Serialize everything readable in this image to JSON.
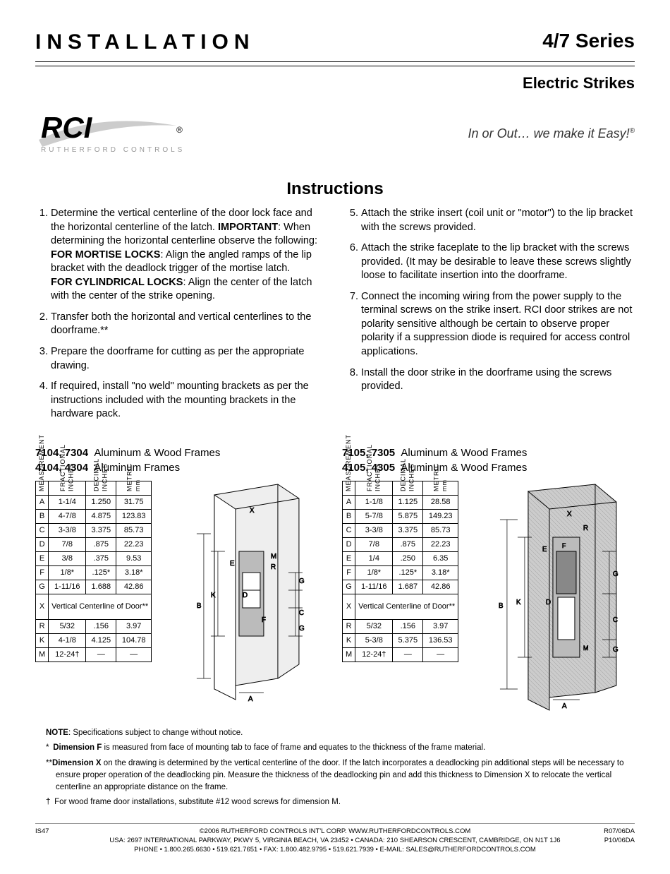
{
  "header": {
    "title": "INSTALLATION",
    "series": "4/7 Series",
    "subtitle": "Electric Strikes"
  },
  "logo": {
    "main": "RCI",
    "reg": "®",
    "sub": "RUTHERFORD CONTROLS",
    "tagline": "In or Out… we make it Easy!",
    "tagline_reg": "®"
  },
  "instructions": {
    "title": "Instructions",
    "left": [
      "Determine the vertical centerline of the door lock face and the horizontal centerline of the latch. <span class=\"bold\">IMPORTANT</span>: When determining the horizontal centerline observe the following:<br><span class=\"bold\">FOR MORTISE LOCKS</span>: Align the angled ramps of the lip bracket with the deadlock trigger of the mortise latch.<br><span class=\"bold\">FOR CYLINDRICAL LOCKS</span>: Align the center of the latch with the center of the strike opening.",
      "Transfer both the horizontal and vertical centerlines to the doorframe.**",
      "Prepare the doorframe for cutting as per the appropriate drawing.",
      "If required, install \"no weld\" mounting brackets as per the instructions included with the mounting brackets in the hardware pack."
    ],
    "right": [
      "Attach the strike insert (coil unit or \"motor\") to the lip bracket with the screws provided.",
      "Attach the strike faceplate to the lip bracket with the screws provided. (It may be desirable to leave these screws slightly loose to facilitate insertion into the doorframe.",
      "Connect the incoming wiring from the power supply to the terminal screws on the strike insert. RCI door strikes are not polarity sensitive although be certain to observe proper polarity if a suppression diode is required for access control applications.",
      "Install the door strike in the doorframe using the screws provided."
    ]
  },
  "blocks": [
    {
      "lines": [
        {
          "models": "7104, 7304",
          "desc": "Aluminum & Wood Frames"
        },
        {
          "models": "4104, 4304",
          "desc": "Aluminum Frames"
        }
      ],
      "headers": [
        "MEASUREMENT",
        "FRACTIONAL\nINCHES",
        "DECIMAL\nINCHES",
        "METRIC\nmm"
      ],
      "rows": [
        [
          "A",
          "1-1/4",
          "1.250",
          "31.75"
        ],
        [
          "B",
          "4-7/8",
          "4.875",
          "123.83"
        ],
        [
          "C",
          "3-3/8",
          "3.375",
          "85.73"
        ],
        [
          "D",
          "7/8",
          ".875",
          "22.23"
        ],
        [
          "E",
          "3/8",
          ".375",
          "9.53"
        ],
        [
          "F",
          "1/8*",
          ".125*",
          "3.18*"
        ],
        [
          "G",
          "1-11/16",
          "1.688",
          "42.86"
        ]
      ],
      "xlabel": "Vertical Centerline of Door**",
      "rows2": [
        [
          "R",
          "5/32",
          ".156",
          "3.97"
        ],
        [
          "K",
          "4-1/8",
          "4.125",
          "104.78"
        ],
        [
          "M",
          "12-24†",
          "—",
          "—"
        ]
      ]
    },
    {
      "lines": [
        {
          "models": "7105, 7305",
          "desc": "Aluminum & Wood Frames"
        },
        {
          "models": "4105, 4305",
          "desc": "Aluminum & Wood Frames"
        }
      ],
      "headers": [
        "MEASUREMENT",
        "FRACTIONAL\nINCHES",
        "DECIMAL\nINCHES",
        "METRIC\nmm"
      ],
      "rows": [
        [
          "A",
          "1-1/8",
          "1.125",
          "28.58"
        ],
        [
          "B",
          "5-7/8",
          "5.875",
          "149.23"
        ],
        [
          "C",
          "3-3/8",
          "3.375",
          "85.73"
        ],
        [
          "D",
          "7/8",
          ".875",
          "22.23"
        ],
        [
          "E",
          "1/4",
          ".250",
          "6.35"
        ],
        [
          "F",
          "1/8*",
          ".125*",
          "3.18*"
        ],
        [
          "G",
          "1-11/16",
          "1.687",
          "42.86"
        ]
      ],
      "xlabel": "Vertical Centerline of Door**",
      "rows2": [
        [
          "R",
          "5/32",
          ".156",
          "3.97"
        ],
        [
          "K",
          "5-3/8",
          "5.375",
          "136.53"
        ],
        [
          "M",
          "12-24†",
          "—",
          "—"
        ]
      ]
    }
  ],
  "notes": {
    "note": "<span class=\"bold\">NOTE</span>: Specifications subject to change without notice.",
    "star": "* <span class=\"bold\">Dimension F</span> is measured from face of mounting tab to face of frame and equates to the thickness of the frame material.",
    "dstar": "**<span class=\"bold\">Dimension X</span> on the drawing is determined by the vertical centerline of the door. If the latch incorporates a deadlocking pin additional steps will be necessary to ensure proper operation of the deadlocking pin. Measure the thickness of the deadlocking pin and add this thickness to Dimension X to relocate the vertical centerline an appropriate distance on the frame.",
    "dagger": "† For wood frame door installations, substitute #12 wood screws for dimension M."
  },
  "footer": {
    "left": "IS47",
    "copy": "©2006 RUTHERFORD CONTROLS INT'L CORP. WWW.RUTHERFORDCONTROLS.COM",
    "addr": "USA: 2697 INTERNATIONAL PARKWAY, PKWY 5, VIRGINIA BEACH, VA 23452 • CANADA: 210 SHEARSON CRESCENT, CAMBRIDGE, ON  N1T 1J6",
    "phone": "PHONE • 1.800.265.6630 • 519.621.7651 • FAX: 1.800.482.9795 • 519.621.7939 • E-MAIL: SALES@RUTHERFORDCONTROLS.COM",
    "right1": "R07/06DA",
    "right2": "P10/06DA"
  },
  "diagram_colors": {
    "stroke": "#000",
    "fill_grey": "#bbb",
    "fill_wood": "#ccc",
    "fill_light": "#eee",
    "dim_stroke": "#000"
  }
}
